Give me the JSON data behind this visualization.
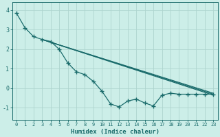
{
  "title": "",
  "xlabel": "Humidex (Indice chaleur)",
  "ylabel": "",
  "bg_color": "#cceee8",
  "line_color": "#1a6b6b",
  "grid_color": "#aed4ce",
  "xlim": [
    -0.5,
    23.5
  ],
  "ylim": [
    -1.6,
    4.4
  ],
  "yticks": [
    -1,
    0,
    1,
    2,
    3,
    4
  ],
  "xticks": [
    0,
    1,
    2,
    3,
    4,
    5,
    6,
    7,
    8,
    9,
    10,
    11,
    12,
    13,
    14,
    15,
    16,
    17,
    18,
    19,
    20,
    21,
    22,
    23
  ],
  "lines": [
    {
      "x": [
        0,
        1,
        2,
        3,
        4,
        5,
        6,
        7,
        8,
        9,
        10,
        11,
        12,
        13,
        14,
        15,
        16,
        17,
        18,
        19,
        20,
        21,
        22,
        23
      ],
      "y": [
        3.85,
        3.1,
        2.65,
        2.5,
        2.4,
        2.0,
        1.3,
        0.85,
        0.7,
        0.35,
        -0.15,
        -0.8,
        -0.95,
        -0.65,
        -0.55,
        -0.75,
        -0.9,
        -0.35,
        -0.25,
        -0.3,
        -0.3,
        -0.3,
        -0.3,
        -0.3
      ],
      "marker": "+",
      "markersize": 4,
      "linewidth": 0.9,
      "zorder": 3
    },
    {
      "x": [
        3,
        23
      ],
      "y": [
        2.5,
        -0.25
      ],
      "marker": null,
      "markersize": 0,
      "linewidth": 0.9,
      "zorder": 2
    },
    {
      "x": [
        3,
        23
      ],
      "y": [
        2.5,
        -0.3
      ],
      "marker": null,
      "markersize": 0,
      "linewidth": 0.9,
      "zorder": 2
    },
    {
      "x": [
        3,
        23
      ],
      "y": [
        2.5,
        -0.35
      ],
      "marker": null,
      "markersize": 0,
      "linewidth": 0.9,
      "zorder": 2
    }
  ]
}
